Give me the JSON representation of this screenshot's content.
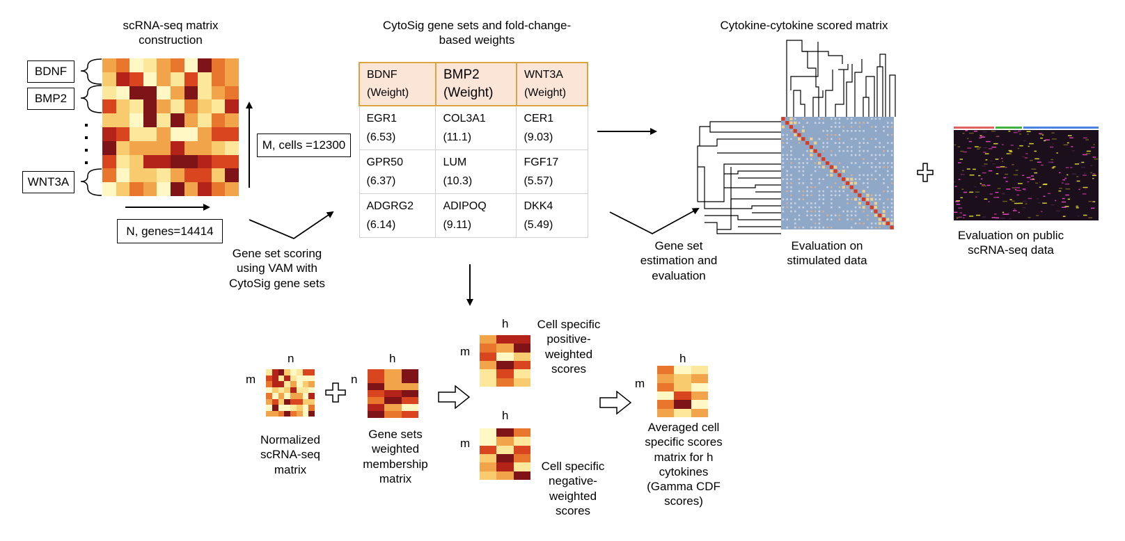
{
  "titles": {
    "matrix_construction": "scRNA-seq matrix construction",
    "cytosig": "CytoSig gene sets and fold-change-based weights",
    "scored_matrix": "Cytokine-cytokine scored matrix"
  },
  "gene_labels": [
    "BDNF",
    "BMP2",
    "WNT3A"
  ],
  "cells_label": "M, cells =12300",
  "genes_label": "N, genes=14414",
  "table": {
    "headers": [
      {
        "gene": "BDNF",
        "weight": "(Weight)"
      },
      {
        "gene": "BMP2",
        "weight": "(Weight)"
      },
      {
        "gene": "WNT3A",
        "weight": "(Weight)"
      }
    ],
    "rows": [
      [
        {
          "gene": "EGR1",
          "value": "(6.53)"
        },
        {
          "gene": "COL3A1",
          "value": "(11.1)"
        },
        {
          "gene": "CER1",
          "value": "(9.03)"
        }
      ],
      [
        {
          "gene": "GPR50",
          "value": "(6.37)"
        },
        {
          "gene": "LUM",
          "value": "(10.3)"
        },
        {
          "gene": "FGF17",
          "value": "(5.57)"
        }
      ],
      [
        {
          "gene": "ADGRG2",
          "value": "(6.14)"
        },
        {
          "gene": "ADIPOQ",
          "value": "(9.11)"
        },
        {
          "gene": "DKK4",
          "value": "(5.49)"
        }
      ]
    ]
  },
  "captions": {
    "gene_set_scoring": "Gene set scoring using VAM with CytoSig gene sets",
    "gene_set_estimation": "Gene set estimation and evaluation",
    "eval_stimulated": "Evaluation on stimulated data",
    "eval_public": "Evaluation on public scRNA-seq data",
    "normalized": "Normalized scRNA-seq matrix",
    "membership": "Gene sets weighted membership matrix",
    "positive": "Cell specific positive-weighted scores",
    "negative": "Cell specific negative-weighted scores",
    "averaged": "Averaged cell specific scores matrix for h cytokines (Gamma CDF scores)"
  },
  "letters": {
    "m": "m",
    "n": "n",
    "h": "h"
  },
  "colors": {
    "heat": [
      "#fff7c4",
      "#fce79a",
      "#f8cb6e",
      "#f2a44a",
      "#e8762c",
      "#d8451f",
      "#b3231a",
      "#7e1418"
    ],
    "table_header": "#fbe5d6",
    "table_border": "#d9a441",
    "corr_bg": "#8fa8c8",
    "corr_diag": "#d83a22"
  },
  "icons": [
    "plus-icon",
    "hollow-arrow-icon",
    "curly-brace-icon",
    "dendrogram-icon"
  ]
}
